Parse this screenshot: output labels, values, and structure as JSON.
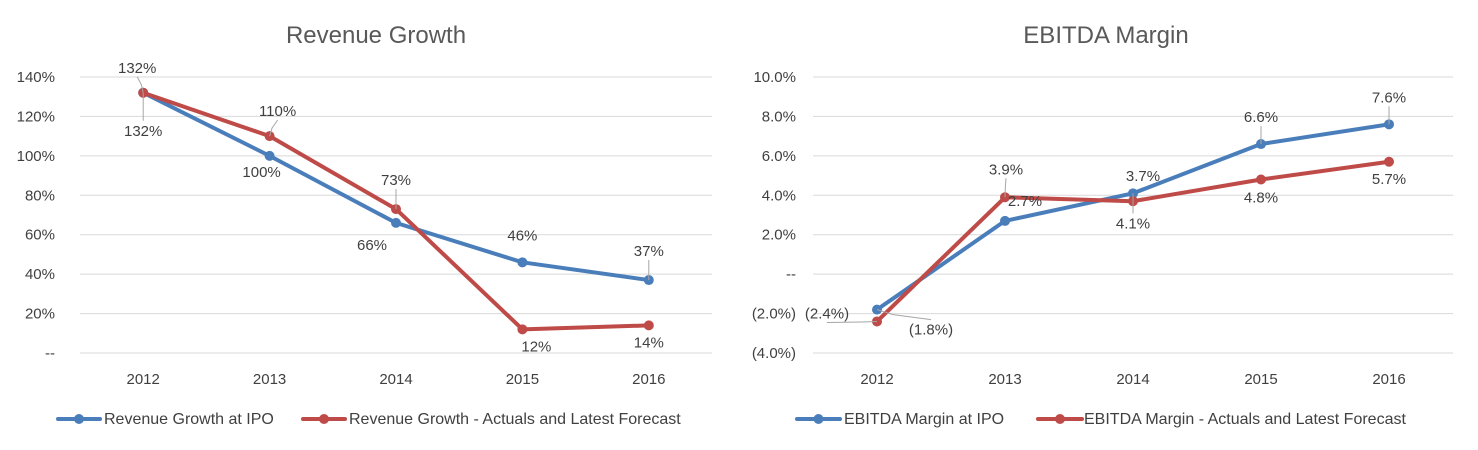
{
  "colors": {
    "at_ipo": "#4a7ebb",
    "actuals": "#be4b48",
    "grid": "#d9d9d9",
    "text": "#404040",
    "title": "#595959"
  },
  "chart_data": [
    {
      "type": "line",
      "title": "Revenue Growth",
      "categories": [
        "2012",
        "2013",
        "2014",
        "2015",
        "2016"
      ],
      "ylim": [
        0,
        140
      ],
      "yticks": [
        "--",
        "20%",
        "40%",
        "60%",
        "80%",
        "100%",
        "120%",
        "140%"
      ],
      "grid": true,
      "legend": "bottom",
      "series": [
        {
          "name": "Revenue Growth at IPO",
          "color_key": "at_ipo",
          "values": [
            132,
            100,
            66,
            46,
            37
          ],
          "labels": [
            "132%",
            "100%",
            "66%",
            "46%",
            "37%"
          ]
        },
        {
          "name": "Revenue Growth - Actuals and Latest Forecast",
          "color_key": "actuals",
          "values": [
            132,
            110,
            73,
            12,
            14
          ],
          "labels": [
            "132%",
            "110%",
            "73%",
            "12%",
            "14%"
          ]
        }
      ]
    },
    {
      "type": "line",
      "title": "EBITDA Margin",
      "categories": [
        "2012",
        "2013",
        "2014",
        "2015",
        "2016"
      ],
      "ylim": [
        -4,
        10
      ],
      "yticks": [
        "(4.0%)",
        "(2.0%)",
        "--",
        "2.0%",
        "4.0%",
        "6.0%",
        "8.0%",
        "10.0%"
      ],
      "grid": true,
      "legend": "bottom",
      "series": [
        {
          "name": "EBITDA Margin at IPO",
          "color_key": "at_ipo",
          "values": [
            -1.8,
            2.7,
            4.1,
            6.6,
            7.6
          ],
          "labels": [
            "(1.8%)",
            "2.7%",
            "4.1%",
            "6.6%",
            "7.6%"
          ]
        },
        {
          "name": "EBITDA Margin - Actuals and Latest Forecast",
          "color_key": "actuals",
          "values": [
            -2.4,
            3.9,
            3.7,
            4.8,
            5.7
          ],
          "labels": [
            "(2.4%)",
            "3.9%",
            "3.7%",
            "4.8%",
            "5.7%"
          ]
        }
      ]
    }
  ]
}
